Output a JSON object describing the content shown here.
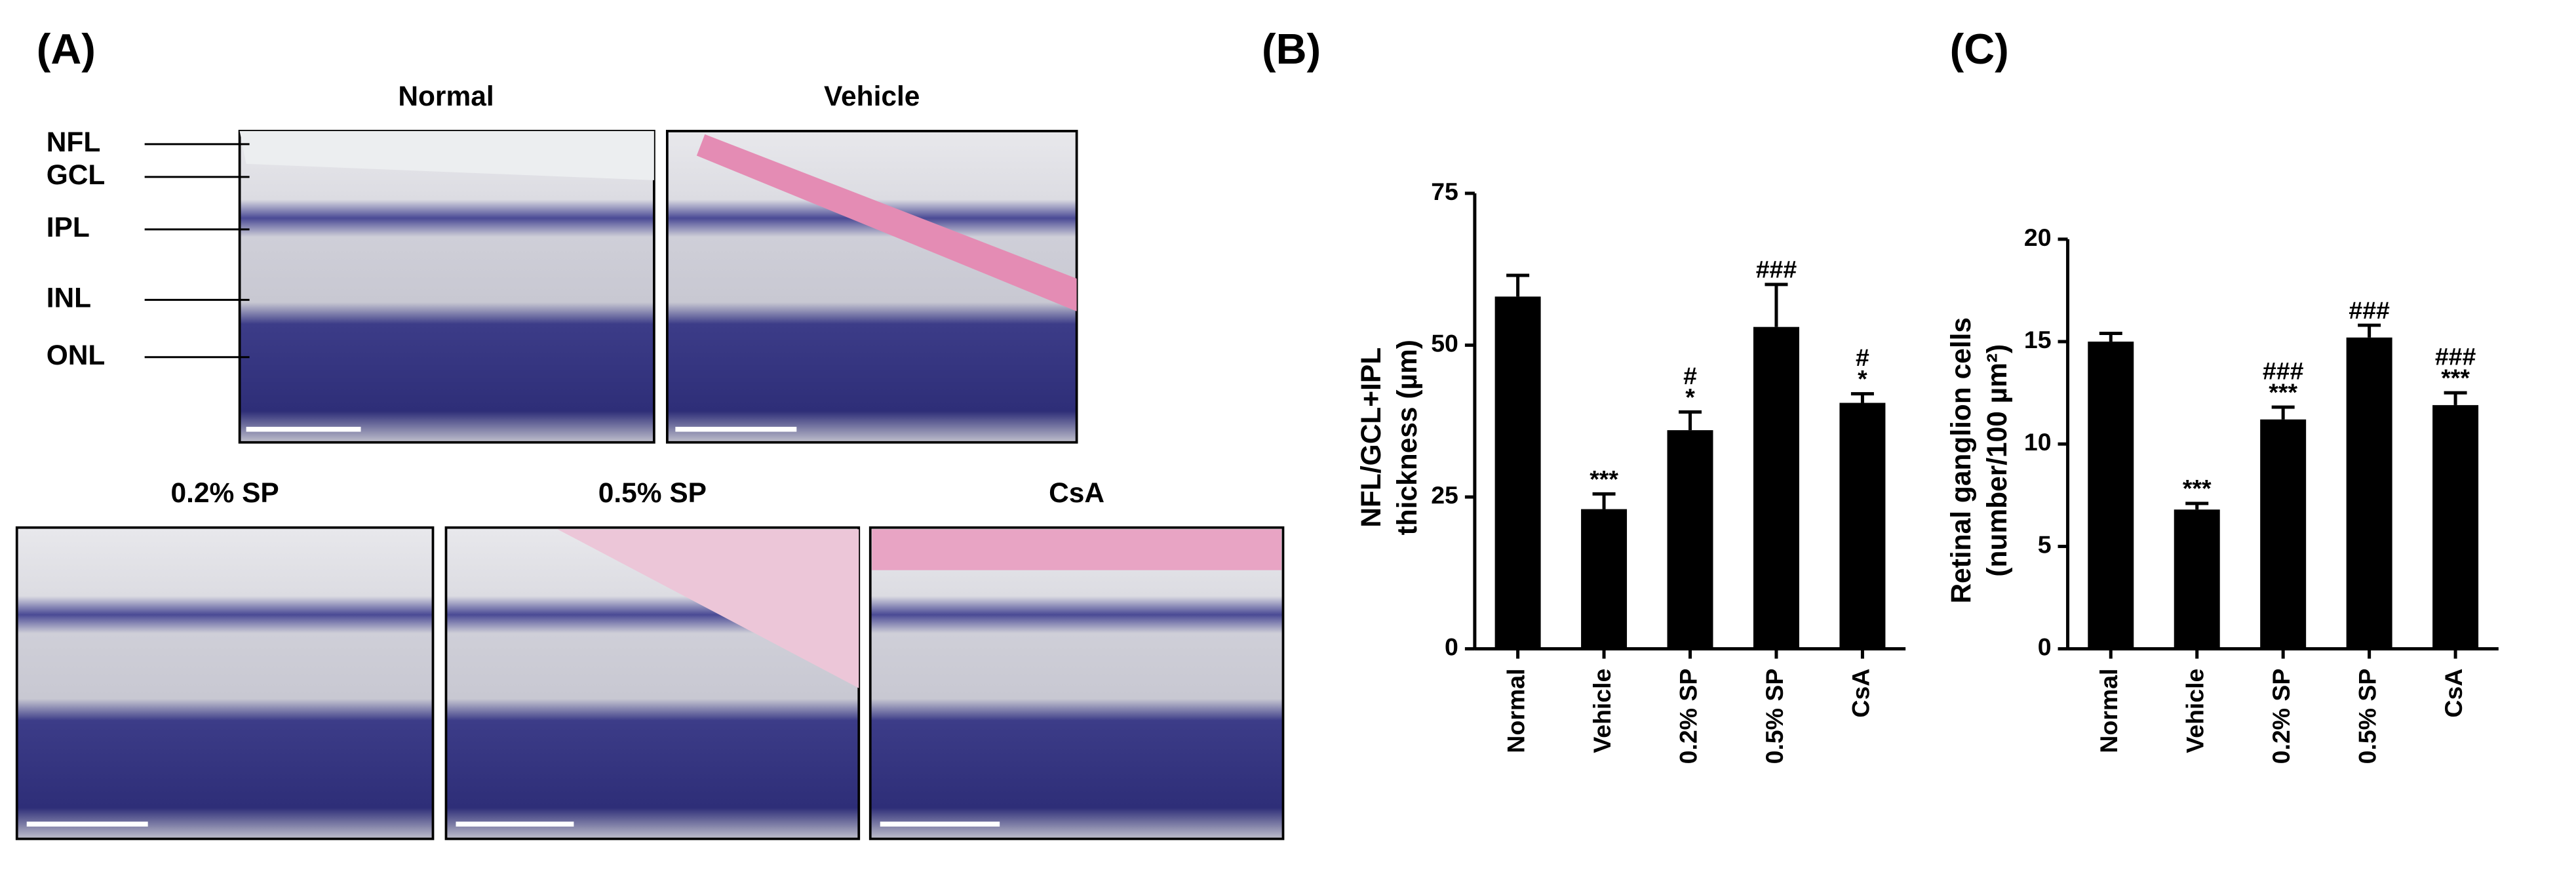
{
  "panel_a": {
    "label": "(A)",
    "images": [
      {
        "label": "Normal"
      },
      {
        "label": "Vehicle"
      },
      {
        "label": "0.2% SP"
      },
      {
        "label": "0.5% SP"
      },
      {
        "label": "CsA"
      }
    ],
    "layers": [
      "NFL",
      "GCL",
      "IPL",
      "INL",
      "ONL"
    ]
  },
  "chart_data": [
    {
      "type": "bar",
      "panel_label": "(B)",
      "y_label": [
        "NFL/GCL+IPL",
        "thickness (µm)"
      ],
      "categories": [
        "Normal",
        "Vehicle",
        "0.2% SP",
        "0.5% SP",
        "CsA"
      ],
      "values": [
        58,
        23,
        36,
        53,
        40.5
      ],
      "errors": [
        3.5,
        2.5,
        3,
        7,
        1.5
      ],
      "annotations": [
        null,
        [
          "***"
        ],
        [
          "#",
          "*"
        ],
        [
          "###"
        ],
        [
          "#",
          "*"
        ]
      ],
      "color": "#000000",
      "ylim": [
        0,
        75
      ],
      "yticks": [
        0,
        25,
        50,
        75
      ]
    },
    {
      "type": "bar",
      "panel_label": "(C)",
      "y_label": [
        "Retinal ganglion cells",
        "(number/100 µm²)"
      ],
      "categories": [
        "Normal",
        "Vehicle",
        "0.2% SP",
        "0.5% SP",
        "CsA"
      ],
      "values": [
        15.0,
        6.8,
        11.2,
        15.2,
        11.9
      ],
      "errors": [
        0.4,
        0.3,
        0.6,
        0.6,
        0.6
      ],
      "annotations": [
        null,
        [
          "***"
        ],
        [
          "###",
          "***"
        ],
        [
          "###"
        ],
        [
          "###",
          "***"
        ]
      ],
      "color": "#000000",
      "ylim": [
        0,
        20
      ],
      "yticks": [
        0,
        5,
        10,
        15,
        20
      ]
    }
  ]
}
